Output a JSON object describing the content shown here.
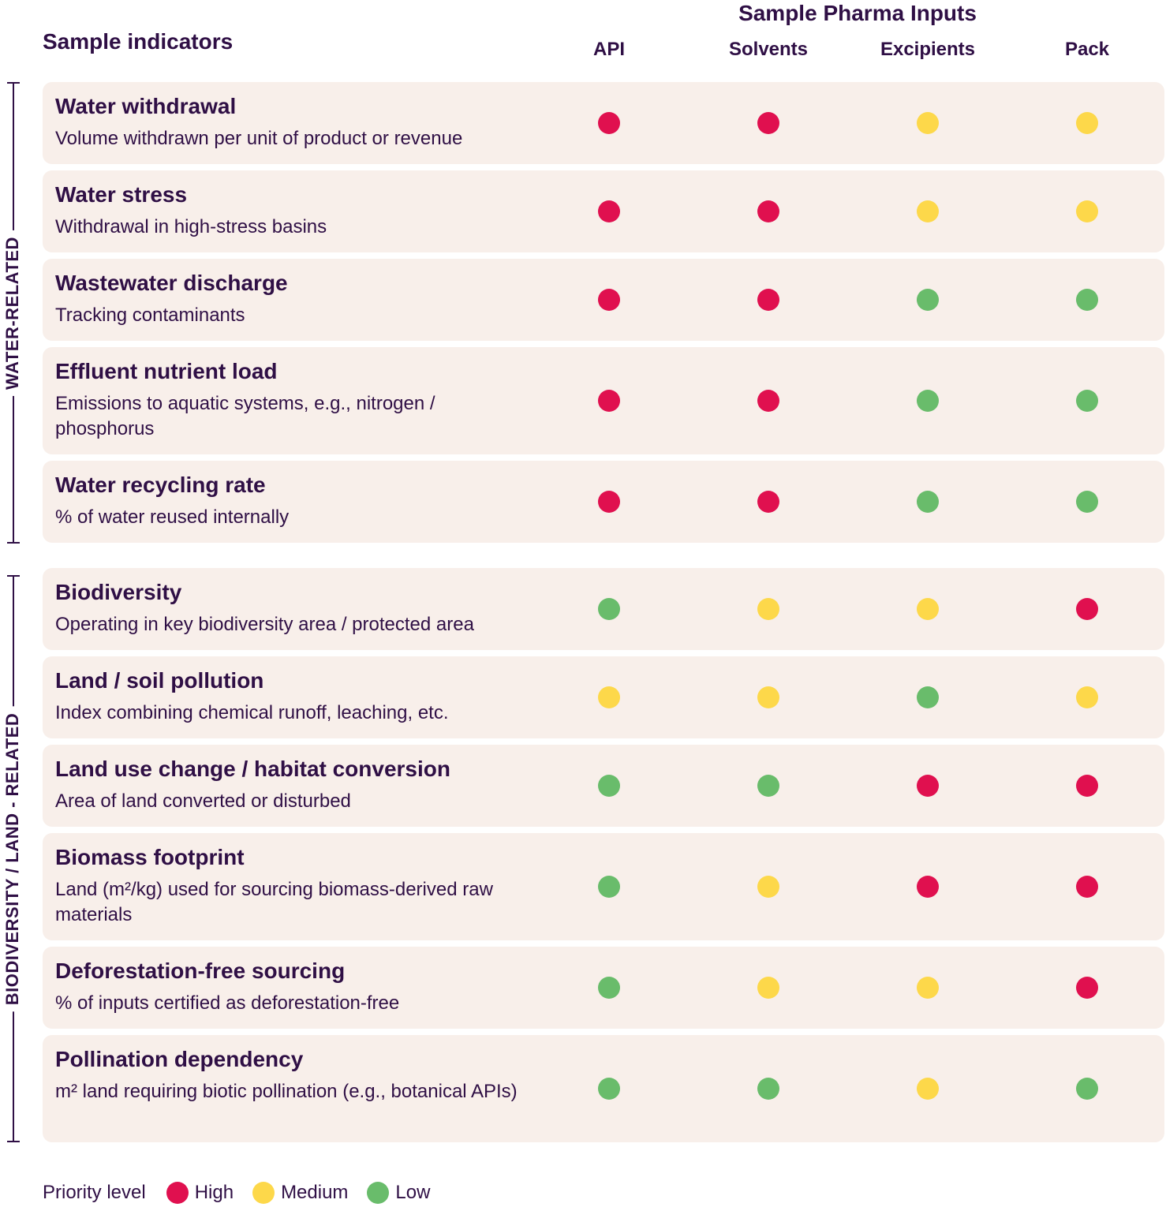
{
  "header": {
    "left_title": "Sample indicators",
    "top_title": "Sample Pharma Inputs"
  },
  "colors": {
    "High": "#e0104f",
    "Medium": "#fdd84a",
    "Low": "#69bc6b",
    "row_background": "#f8efea",
    "text": "#2f0f45"
  },
  "groups": [
    {
      "label": "WATER-RELATED",
      "rows": [
        0,
        1,
        2,
        3,
        4
      ]
    },
    {
      "label": "BIODIVERSITY / LAND - RELATED",
      "rows": [
        5,
        6,
        7,
        8,
        9,
        10
      ]
    }
  ],
  "legend": {
    "title": "Priority level",
    "items": [
      {
        "label": "High",
        "level": "High"
      },
      {
        "label": "Medium",
        "level": "Medium"
      },
      {
        "label": "Low",
        "level": "Low"
      }
    ]
  },
  "chart_data": {
    "type": "table",
    "columns": [
      "API",
      "Solvents",
      "Excipients",
      "Pack"
    ],
    "rows": [
      {
        "title": "Water withdrawal",
        "description": "Volume withdrawn per unit of product or revenue",
        "values": [
          "High",
          "High",
          "Medium",
          "Medium"
        ]
      },
      {
        "title": "Water stress",
        "description": "Withdrawal in high-stress basins",
        "values": [
          "High",
          "High",
          "Medium",
          "Medium"
        ]
      },
      {
        "title": "Wastewater discharge",
        "description": "Tracking contaminants",
        "values": [
          "High",
          "High",
          "Low",
          "Low"
        ]
      },
      {
        "title": "Effluent nutrient load",
        "description": "Emissions to aquatic systems, e.g., nitrogen / phosphorus",
        "values": [
          "High",
          "High",
          "Low",
          "Low"
        ]
      },
      {
        "title": "Water recycling rate",
        "description": "% of water reused internally",
        "values": [
          "High",
          "High",
          "Low",
          "Low"
        ]
      },
      {
        "title": "Biodiversity",
        "description": "Operating in key biodiversity area / protected area",
        "values": [
          "Low",
          "Medium",
          "Medium",
          "High"
        ]
      },
      {
        "title": "Land / soil pollution",
        "description": "Index combining chemical runoff, leaching, etc.",
        "values": [
          "Medium",
          "Medium",
          "Low",
          "Medium"
        ]
      },
      {
        "title": "Land use change / habitat conversion",
        "description": "Area of land converted or disturbed",
        "values": [
          "Low",
          "Low",
          "High",
          "High"
        ]
      },
      {
        "title": "Biomass footprint",
        "description": "Land (m²/kg) used for sourcing biomass-derived raw materials",
        "values": [
          "Low",
          "Medium",
          "High",
          "High"
        ]
      },
      {
        "title": "Deforestation-free sourcing",
        "description": "% of inputs certified as deforestation-free",
        "values": [
          "Low",
          "Medium",
          "Medium",
          "High"
        ]
      },
      {
        "title": "Pollination dependency",
        "description": "m² land requiring biotic pollination (e.g., botanical APIs)",
        "values": [
          "Low",
          "Low",
          "Medium",
          "Low"
        ]
      }
    ]
  }
}
